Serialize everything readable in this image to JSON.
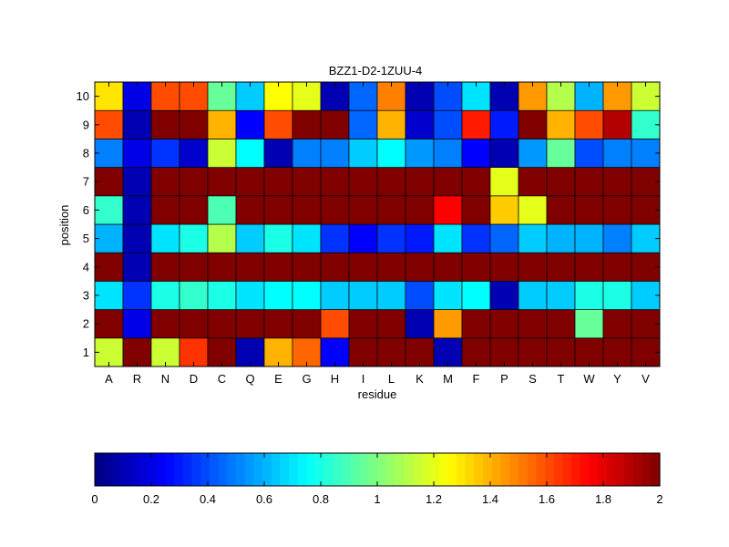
{
  "chart_data": {
    "type": "heatmap",
    "title": "BZZ1-D2-1ZUU-4",
    "xlabel": "residue",
    "ylabel": "position",
    "x_categories": [
      "A",
      "R",
      "N",
      "D",
      "C",
      "Q",
      "E",
      "G",
      "H",
      "I",
      "L",
      "K",
      "M",
      "F",
      "P",
      "S",
      "T",
      "W",
      "Y",
      "V"
    ],
    "y_categories": [
      "1",
      "2",
      "3",
      "4",
      "5",
      "6",
      "7",
      "8",
      "9",
      "10"
    ],
    "values": [
      [
        1.15,
        2.0,
        1.15,
        1.65,
        2.0,
        0.1,
        1.4,
        1.55,
        0.25,
        2.0,
        2.0,
        2.0,
        0.1,
        2.0,
        2.0,
        2.0,
        2.0,
        2.0,
        2.0,
        2.0
      ],
      [
        2.0,
        0.2,
        2.0,
        2.0,
        2.0,
        2.0,
        2.0,
        2.0,
        1.6,
        2.0,
        2.0,
        0.1,
        1.45,
        2.0,
        2.0,
        2.0,
        2.0,
        0.95,
        2.0,
        2.0
      ],
      [
        0.7,
        0.35,
        0.8,
        0.85,
        0.8,
        0.7,
        0.75,
        0.75,
        0.65,
        0.65,
        0.65,
        0.4,
        0.7,
        0.75,
        0.1,
        0.65,
        0.65,
        0.8,
        0.8,
        0.65
      ],
      [
        2.0,
        0.1,
        2.0,
        2.0,
        2.0,
        2.0,
        2.0,
        2.0,
        2.0,
        2.0,
        2.0,
        2.0,
        2.0,
        2.0,
        2.0,
        2.0,
        2.0,
        2.0,
        2.0,
        2.0
      ],
      [
        0.6,
        0.1,
        0.7,
        0.8,
        1.1,
        0.65,
        0.8,
        0.7,
        0.35,
        0.25,
        0.35,
        0.3,
        0.7,
        0.35,
        0.45,
        0.65,
        0.6,
        0.6,
        0.5,
        0.65
      ],
      [
        0.85,
        0.1,
        2.0,
        2.0,
        0.9,
        2.0,
        2.0,
        2.0,
        2.0,
        2.0,
        2.0,
        2.0,
        1.75,
        2.0,
        1.35,
        1.2,
        2.0,
        2.0,
        2.0,
        2.0
      ],
      [
        2.0,
        0.1,
        2.0,
        2.0,
        2.0,
        2.0,
        2.0,
        2.0,
        2.0,
        2.0,
        2.0,
        2.0,
        2.0,
        2.0,
        1.2,
        2.0,
        2.0,
        2.0,
        2.0,
        2.0
      ],
      [
        0.5,
        0.2,
        0.35,
        0.15,
        1.15,
        0.75,
        0.1,
        0.5,
        0.5,
        0.65,
        0.75,
        0.55,
        0.5,
        0.25,
        0.1,
        0.55,
        0.95,
        0.4,
        0.5,
        0.5
      ],
      [
        1.6,
        0.1,
        2.0,
        2.0,
        1.4,
        0.25,
        1.6,
        2.0,
        2.0,
        0.45,
        1.4,
        0.15,
        0.4,
        1.7,
        0.3,
        2.0,
        1.4,
        1.6,
        1.9,
        0.85
      ],
      [
        1.3,
        0.2,
        1.6,
        1.6,
        0.95,
        0.65,
        1.25,
        1.2,
        0.1,
        0.45,
        1.5,
        0.1,
        0.4,
        0.7,
        0.1,
        1.45,
        1.1,
        0.6,
        1.45,
        1.15
      ]
    ],
    "colorbar": {
      "colormap": "jet",
      "range": [
        0,
        2
      ],
      "ticks": [
        0,
        0.2,
        0.4,
        0.6,
        0.8,
        1,
        1.2,
        1.4,
        1.6,
        1.8,
        2
      ],
      "tick_labels": [
        "0",
        "0.2",
        "0.4",
        "0.6",
        "0.8",
        "1",
        "1.2",
        "1.4",
        "1.6",
        "1.8",
        "2"
      ],
      "orientation": "horizontal",
      "placement": "bottom"
    }
  }
}
